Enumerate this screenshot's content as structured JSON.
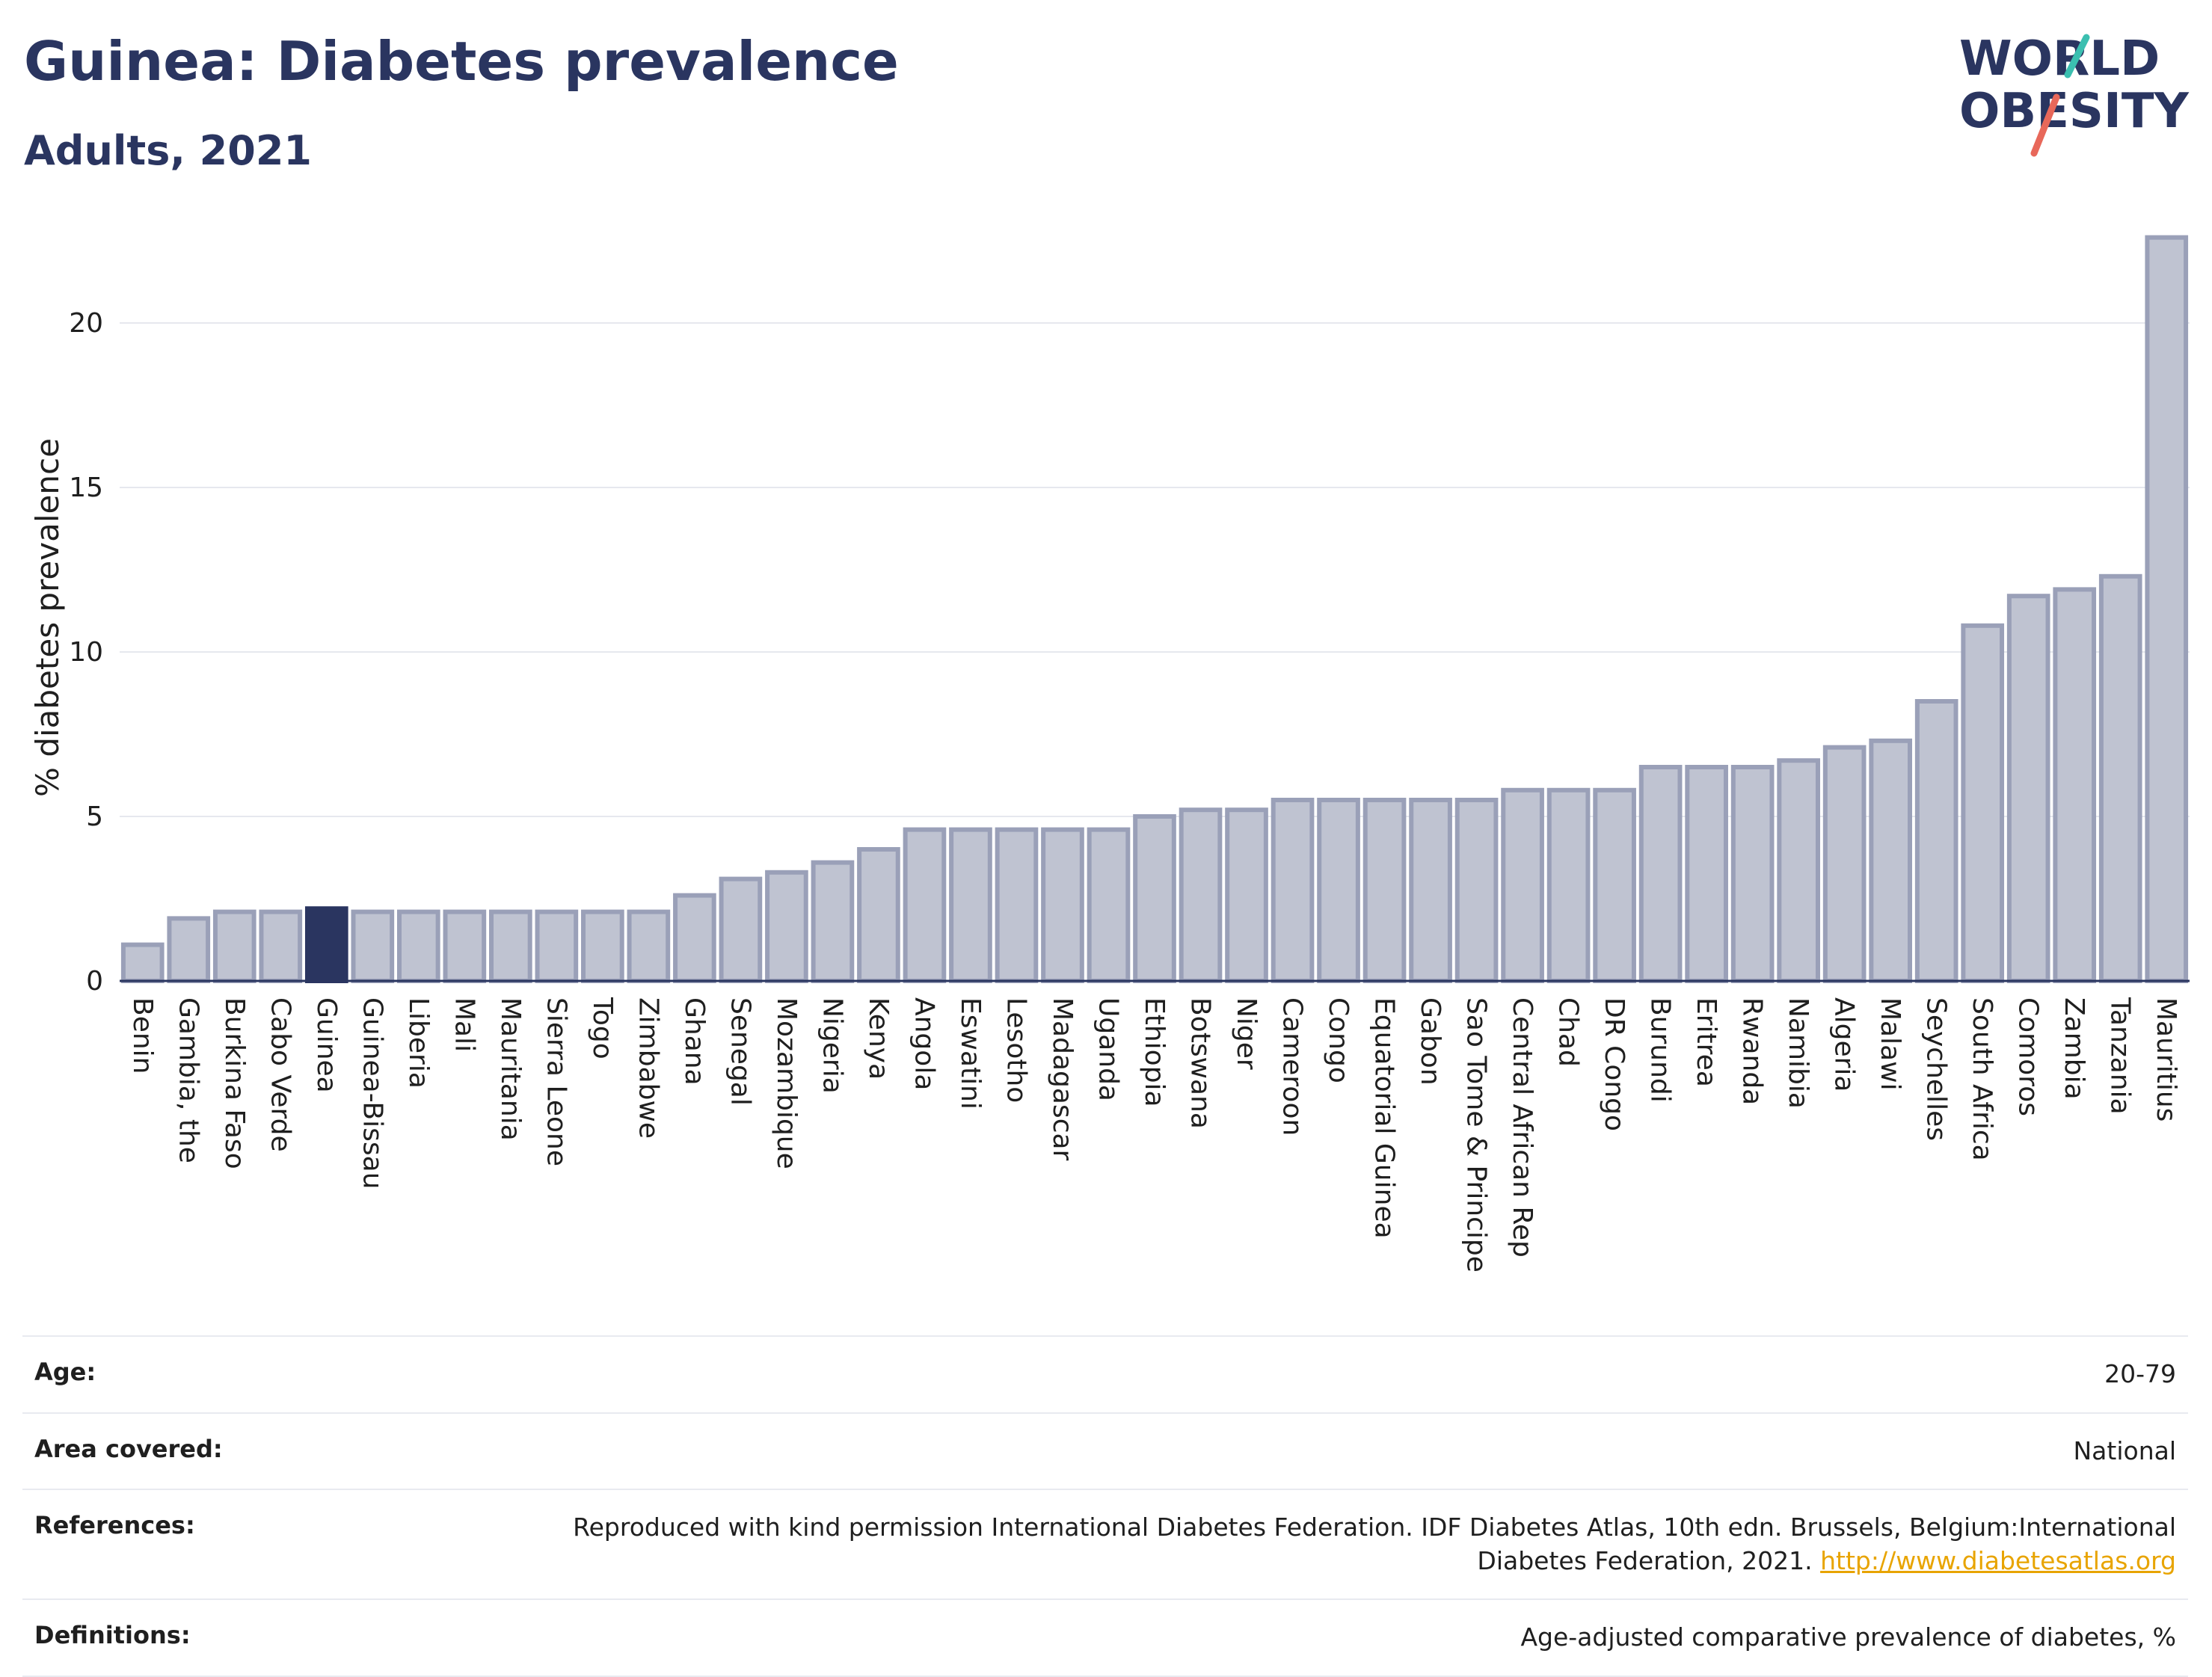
{
  "header": {
    "title": "Guinea: Diabetes prevalence",
    "subtitle": "Adults, 2021"
  },
  "logo": {
    "line1": "WORLD",
    "line2": "OBESITY",
    "colors": {
      "text": "#2a3560",
      "slash_top": "#3bbfb0",
      "slash_bottom": "#e8685a"
    }
  },
  "chart_data": {
    "type": "bar",
    "ylabel": "% diabetes prevalence",
    "xlabel": "",
    "ylim": [
      0,
      23
    ],
    "yticks": [
      0,
      5,
      10,
      15,
      20
    ],
    "grid": true,
    "highlight": "Guinea",
    "colors": {
      "bar": "#bfc3d1",
      "bar_edge": "#9aa0b8",
      "highlight": "#2a3560"
    },
    "categories": [
      "Benin",
      "Gambia, the",
      "Burkina Faso",
      "Cabo Verde",
      "Guinea",
      "Guinea-Bissau",
      "Liberia",
      "Mali",
      "Mauritania",
      "Sierra Leone",
      "Togo",
      "Zimbabwe",
      "Ghana",
      "Senegal",
      "Mozambique",
      "Nigeria",
      "Kenya",
      "Angola",
      "Eswatini",
      "Lesotho",
      "Madagascar",
      "Uganda",
      "Ethiopia",
      "Botswana",
      "Niger",
      "Cameroon",
      "Congo",
      "Equatorial Guinea",
      "Gabon",
      "Sao Tome & Principe",
      "Central African Rep",
      "Chad",
      "DR Congo",
      "Burundi",
      "Eritrea",
      "Rwanda",
      "Namibia",
      "Algeria",
      "Malawi",
      "Seychelles",
      "South Africa",
      "Comoros",
      "Zambia",
      "Tanzania",
      "Mauritius"
    ],
    "values": [
      1.1,
      1.9,
      2.1,
      2.1,
      2.2,
      2.1,
      2.1,
      2.1,
      2.1,
      2.1,
      2.1,
      2.1,
      2.6,
      3.1,
      3.3,
      3.6,
      4.0,
      4.6,
      4.6,
      4.6,
      4.6,
      4.6,
      5.0,
      5.2,
      5.2,
      5.5,
      5.5,
      5.5,
      5.5,
      5.5,
      5.8,
      5.8,
      5.8,
      6.5,
      6.5,
      6.5,
      6.7,
      7.1,
      7.3,
      8.5,
      10.8,
      11.7,
      11.9,
      12.3,
      22.6
    ]
  },
  "info": {
    "rows": [
      {
        "label": "Age:",
        "value": "20-79"
      },
      {
        "label": "Area covered:",
        "value": "National"
      },
      {
        "label": "References:",
        "value": "Reproduced with kind permission International Diabetes Federation.  IDF Diabetes Atlas, 10th edn. Brussels, Belgium:International Diabetes Federation, 2021.",
        "link": "http://www.diabetesatlas.org"
      },
      {
        "label": "Definitions:",
        "value": "Age-adjusted comparative prevalence of diabetes, %"
      }
    ]
  }
}
